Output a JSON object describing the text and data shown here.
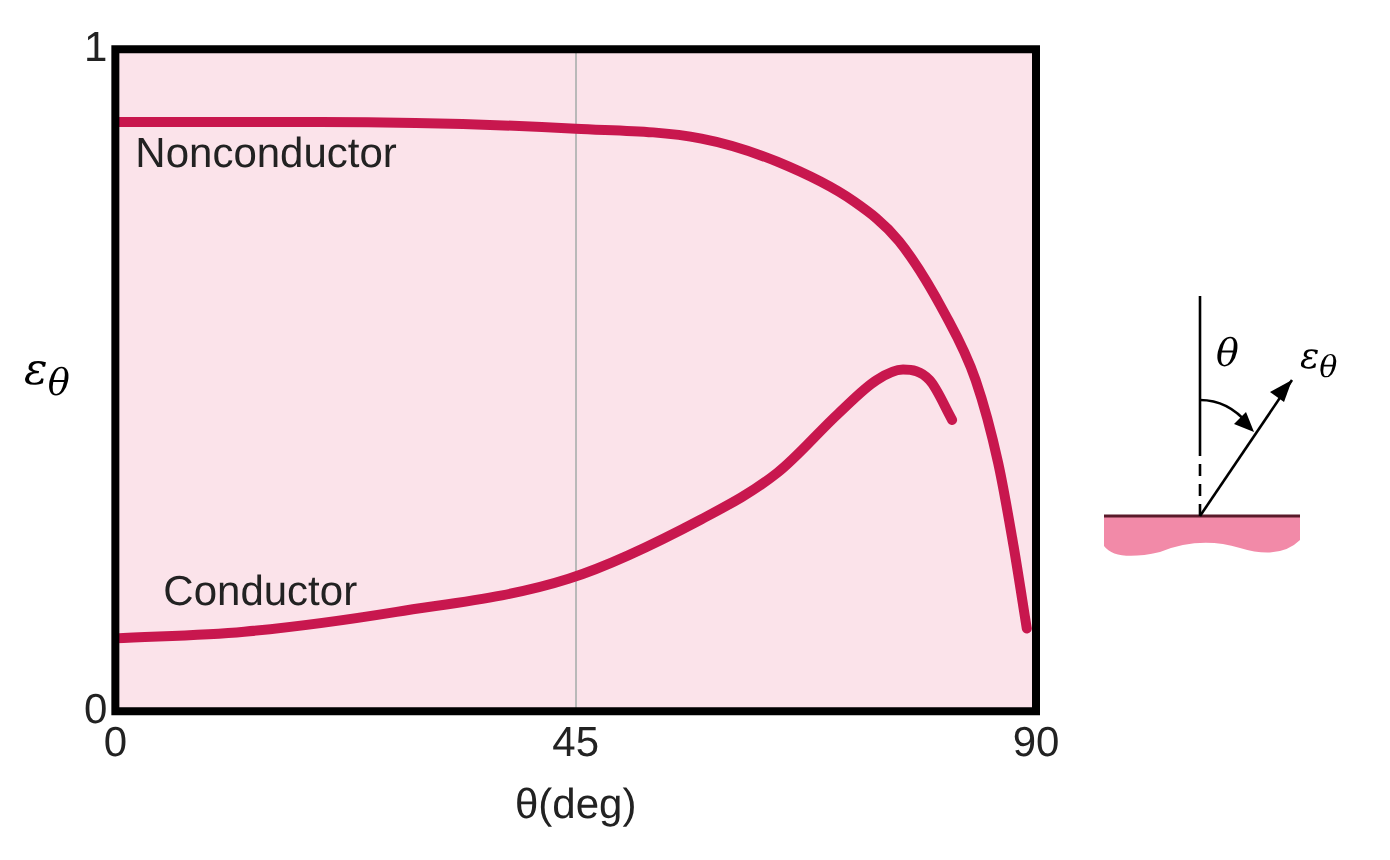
{
  "chart_data": {
    "type": "line",
    "xlabel": "θ(deg)",
    "ylabel": "ε$_{θ}$",
    "xlim": [
      0,
      90
    ],
    "xticks": [
      0,
      45,
      90
    ],
    "ylim": [
      0,
      1
    ],
    "yticks": [
      0,
      1
    ],
    "grid": "x",
    "legend": false,
    "marker": "none",
    "line_style": "solid",
    "series": [
      {
        "name": "Nonconductor",
        "color": "#c8174e",
        "x": [
          0,
          20,
          45,
          57.3,
          64.7,
          72.2,
          76.6,
          81.1,
          84.1,
          86.3,
          87.8,
          89.1
        ],
        "values": [
          0.89,
          0.89,
          0.88,
          0.865,
          0.83,
          0.77,
          0.71,
          0.6,
          0.5,
          0.375,
          0.25,
          0.125
        ]
      },
      {
        "name": "Conductor",
        "color": "#c8174e",
        "x": [
          0,
          12.6,
          27.5,
          44.3,
          57.3,
          64.7,
          70.7,
          74.4,
          77,
          79.6,
          81.8
        ],
        "values": [
          0.11,
          0.12,
          0.15,
          0.2,
          0.29,
          0.36,
          0.45,
          0.5,
          0.516,
          0.5,
          0.44
        ]
      }
    ],
    "annotations": [
      "θ",
      "ε$_{θ}$"
    ]
  }
}
